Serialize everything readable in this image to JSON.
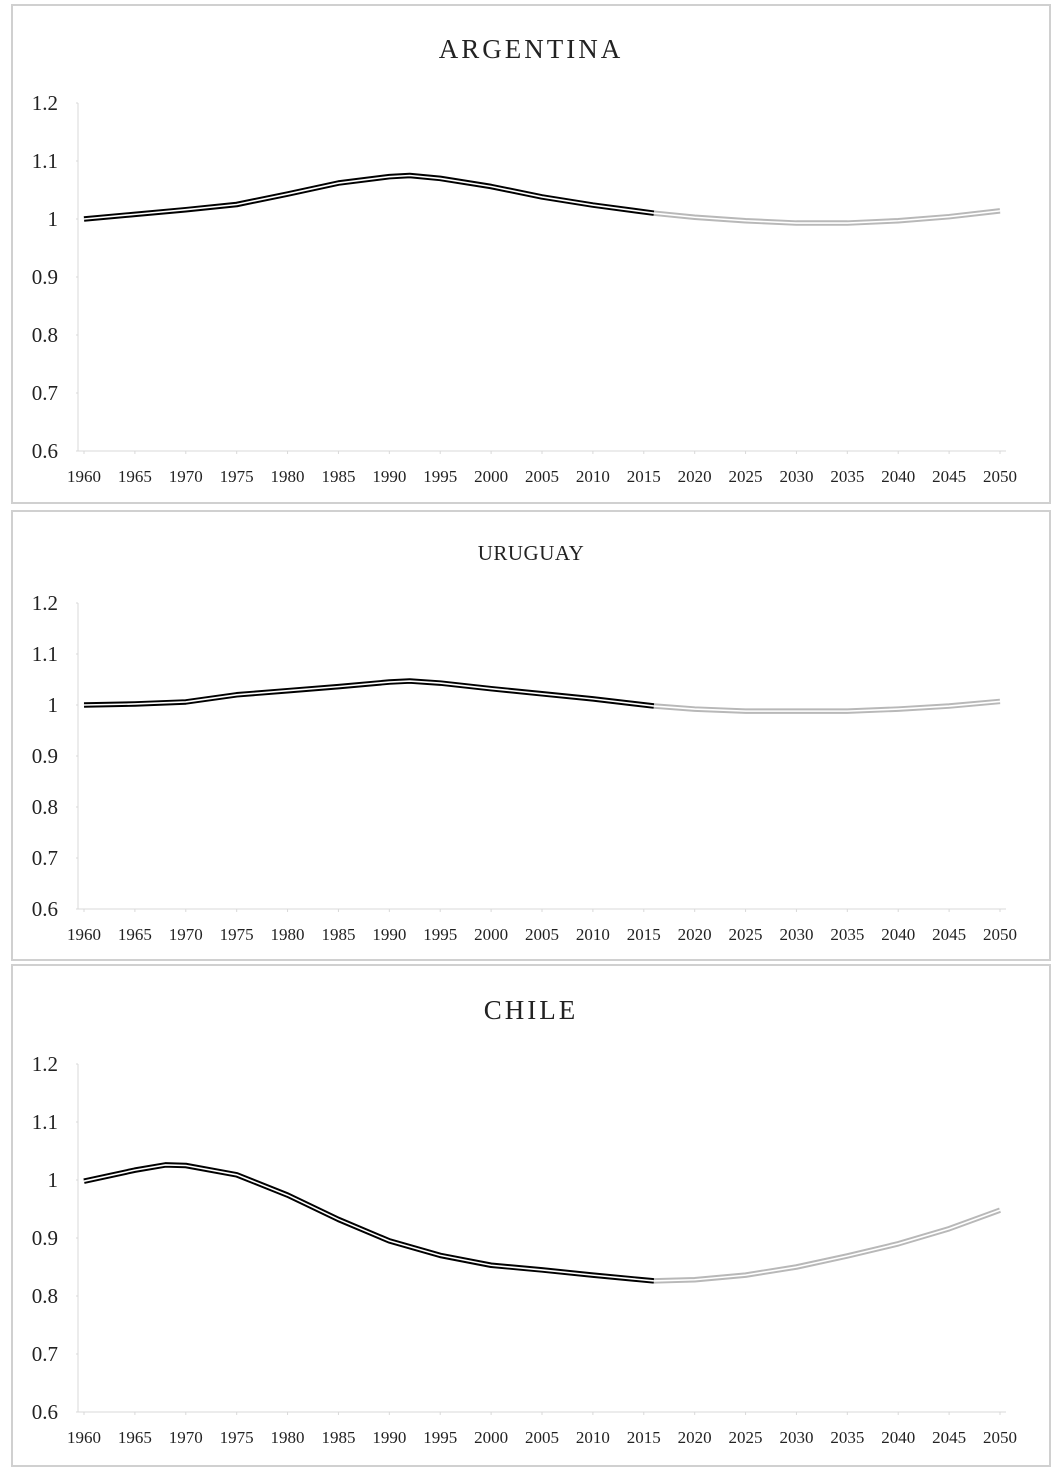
{
  "chart_data": [
    {
      "type": "line",
      "title": "ARGENTINA",
      "series": [
        {
          "color": "#000000",
          "x": [
            1960,
            1965,
            1970,
            1975,
            1980,
            1985,
            1990,
            1992,
            1995,
            2000,
            2005,
            2010,
            2016
          ],
          "values": [
            1.0,
            1.008,
            1.016,
            1.025,
            1.043,
            1.062,
            1.073,
            1.075,
            1.07,
            1.056,
            1.038,
            1.024,
            1.01
          ]
        },
        {
          "color": "#b8b8b8",
          "x": [
            2016,
            2020,
            2025,
            2030,
            2035,
            2040,
            2045,
            2050
          ],
          "values": [
            1.01,
            1.003,
            0.997,
            0.993,
            0.993,
            0.997,
            1.004,
            1.014
          ]
        }
      ],
      "xlim": [
        1960,
        2050
      ],
      "xticks": [
        1960,
        1965,
        1970,
        1975,
        1980,
        1985,
        1990,
        1995,
        2000,
        2005,
        2010,
        2015,
        2020,
        2025,
        2030,
        2035,
        2040,
        2045,
        2050
      ],
      "ylim": [
        0.6,
        1.2
      ],
      "yticks": [
        0.6,
        0.7,
        0.8,
        0.9,
        1,
        1.1,
        1.2
      ]
    },
    {
      "type": "line",
      "title": "URUGUAY",
      "series": [
        {
          "color": "#000000",
          "x": [
            1960,
            1965,
            1970,
            1975,
            1980,
            1985,
            1990,
            1992,
            1995,
            2000,
            2005,
            2010,
            2016
          ],
          "values": [
            1.0,
            1.002,
            1.006,
            1.02,
            1.028,
            1.036,
            1.045,
            1.047,
            1.043,
            1.032,
            1.022,
            1.012,
            0.998
          ]
        },
        {
          "color": "#b8b8b8",
          "x": [
            2016,
            2020,
            2025,
            2030,
            2035,
            2040,
            2045,
            2050
          ],
          "values": [
            0.998,
            0.992,
            0.988,
            0.988,
            0.988,
            0.992,
            0.998,
            1.007
          ]
        }
      ],
      "xlim": [
        1960,
        2050
      ],
      "xticks": [
        1960,
        1965,
        1970,
        1975,
        1980,
        1985,
        1990,
        1995,
        2000,
        2005,
        2010,
        2015,
        2020,
        2025,
        2030,
        2035,
        2040,
        2045,
        2050
      ],
      "ylim": [
        0.6,
        1.2
      ],
      "yticks": [
        0.6,
        0.7,
        0.8,
        0.9,
        1,
        1.1,
        1.2
      ]
    },
    {
      "type": "line",
      "title": "CHILE",
      "series": [
        {
          "color": "#000000",
          "x": [
            1960,
            1965,
            1968,
            1970,
            1975,
            1980,
            1985,
            1990,
            1995,
            2000,
            2005,
            2010,
            2016
          ],
          "values": [
            0.998,
            1.017,
            1.026,
            1.025,
            1.009,
            0.974,
            0.932,
            0.895,
            0.87,
            0.853,
            0.845,
            0.836,
            0.826
          ]
        },
        {
          "color": "#b8b8b8",
          "x": [
            2016,
            2020,
            2025,
            2030,
            2035,
            2040,
            2045,
            2050
          ],
          "values": [
            0.826,
            0.828,
            0.836,
            0.85,
            0.869,
            0.89,
            0.916,
            0.948
          ]
        }
      ],
      "xlim": [
        1960,
        2050
      ],
      "xticks": [
        1960,
        1965,
        1970,
        1975,
        1980,
        1985,
        1990,
        1995,
        2000,
        2005,
        2010,
        2015,
        2020,
        2025,
        2030,
        2035,
        2040,
        2045,
        2050
      ],
      "ylim": [
        0.6,
        1.2
      ],
      "yticks": [
        0.6,
        0.7,
        0.8,
        0.9,
        1,
        1.1,
        1.2
      ]
    }
  ]
}
